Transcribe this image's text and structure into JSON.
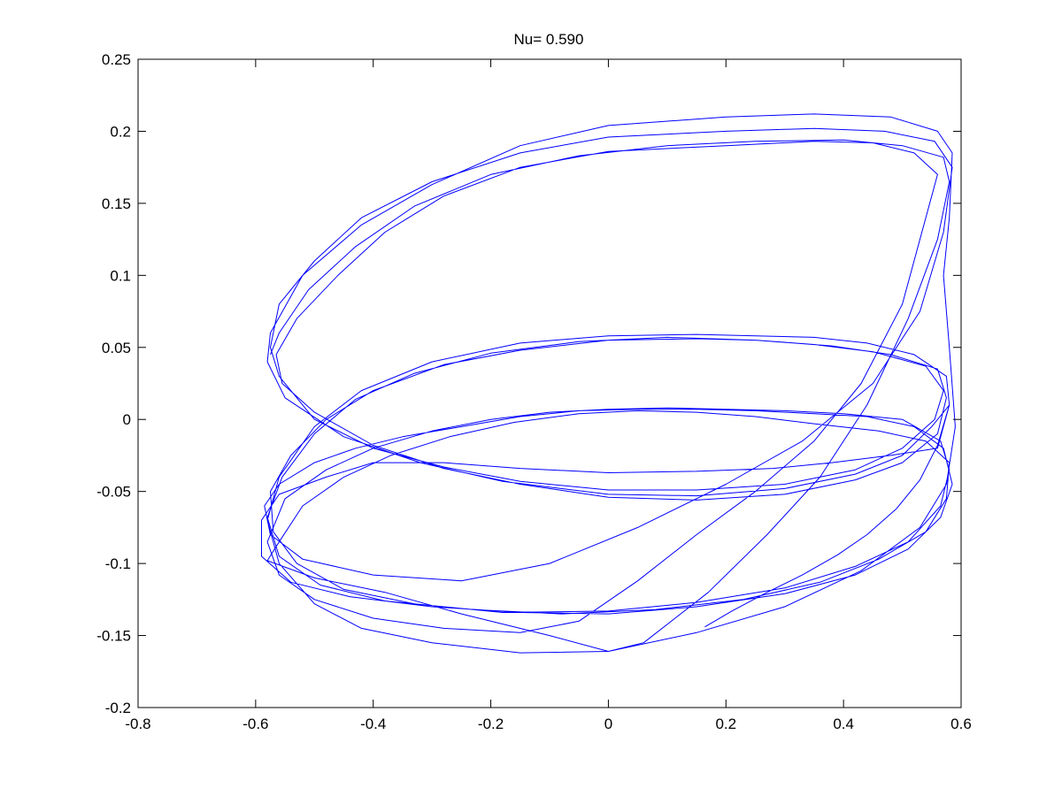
{
  "chart_data": {
    "type": "line",
    "title": "Nu= 0.590",
    "xlabel": "",
    "ylabel": "",
    "xlim": [
      -0.8,
      0.6
    ],
    "ylim": [
      -0.2,
      0.25
    ],
    "xticks": [
      -0.8,
      -0.6,
      -0.4,
      -0.2,
      0,
      0.2,
      0.4,
      0.6
    ],
    "yticks": [
      -0.2,
      -0.15,
      -0.1,
      -0.05,
      0,
      0.05,
      0.1,
      0.15,
      0.2,
      0.25
    ],
    "xtick_labels": [
      "-0.8",
      "-0.6",
      "-0.4",
      "-0.2",
      "0",
      "0.2",
      "0.4",
      "0.6"
    ],
    "ytick_labels": [
      "-0.2",
      "-0.15",
      "-0.1",
      "-0.05",
      "0",
      "0.05",
      "0.1",
      "0.15",
      "0.2",
      "0.25"
    ],
    "grid": false,
    "line_color": "#0000ff",
    "series": [
      {
        "points": [
          [
            0.164,
            -0.144
          ],
          [
            0.21,
            -0.133
          ],
          [
            0.27,
            -0.12
          ],
          [
            0.33,
            -0.108
          ],
          [
            0.39,
            -0.094
          ],
          [
            0.44,
            -0.08
          ],
          [
            0.49,
            -0.062
          ],
          [
            0.53,
            -0.042
          ],
          [
            0.56,
            -0.018
          ],
          [
            0.58,
            0.01
          ],
          [
            0.575,
            0.03
          ],
          [
            0.52,
            0.045
          ],
          [
            0.44,
            0.053
          ],
          [
            0.35,
            0.057
          ],
          [
            0.25,
            0.058
          ],
          [
            0.15,
            0.059
          ],
          [
            0.0,
            0.058
          ],
          [
            -0.15,
            0.053
          ],
          [
            -0.3,
            0.04
          ],
          [
            -0.42,
            0.02
          ],
          [
            -0.5,
            -0.005
          ],
          [
            -0.56,
            -0.04
          ],
          [
            -0.58,
            -0.07
          ],
          [
            -0.56,
            -0.1
          ],
          [
            -0.5,
            -0.128
          ],
          [
            -0.42,
            -0.145
          ],
          [
            -0.3,
            -0.155
          ],
          [
            -0.15,
            -0.162
          ],
          [
            0.0,
            -0.161
          ],
          [
            0.15,
            -0.148
          ],
          [
            0.3,
            -0.13
          ],
          [
            0.43,
            -0.105
          ],
          [
            0.53,
            -0.075
          ],
          [
            0.575,
            -0.045
          ],
          [
            0.59,
            -0.005
          ],
          [
            0.58,
            0.05
          ],
          [
            0.57,
            0.1
          ],
          [
            0.58,
            0.14
          ],
          [
            0.585,
            0.185
          ],
          [
            0.56,
            0.2
          ],
          [
            0.48,
            0.21
          ],
          [
            0.35,
            0.212
          ],
          [
            0.2,
            0.21
          ],
          [
            0.0,
            0.204
          ],
          [
            -0.15,
            0.19
          ],
          [
            -0.3,
            0.163
          ],
          [
            -0.42,
            0.135
          ],
          [
            -0.52,
            0.1
          ],
          [
            -0.575,
            0.06
          ],
          [
            -0.58,
            0.04
          ],
          [
            -0.55,
            0.015
          ],
          [
            -0.45,
            -0.012
          ],
          [
            -0.32,
            -0.03
          ],
          [
            -0.18,
            -0.043
          ],
          [
            0.0,
            -0.052
          ],
          [
            0.15,
            -0.053
          ],
          [
            0.3,
            -0.048
          ],
          [
            0.42,
            -0.038
          ],
          [
            0.5,
            -0.025
          ],
          [
            0.55,
            -0.005
          ],
          [
            0.58,
            0.01
          ],
          [
            0.56,
            -0.02
          ],
          [
            0.48,
            -0.025
          ],
          [
            0.38,
            -0.03
          ],
          [
            0.28,
            -0.034
          ],
          [
            0.15,
            -0.036
          ],
          [
            0.0,
            -0.037
          ],
          [
            -0.15,
            -0.034
          ],
          [
            -0.28,
            -0.03
          ],
          [
            -0.4,
            -0.03
          ],
          [
            -0.48,
            -0.04
          ],
          [
            -0.56,
            -0.052
          ],
          [
            -0.59,
            -0.07
          ],
          [
            -0.59,
            -0.095
          ],
          [
            -0.54,
            -0.113
          ],
          [
            -0.44,
            -0.123
          ],
          [
            -0.3,
            -0.13
          ],
          [
            -0.15,
            -0.134
          ],
          [
            0.0,
            -0.135
          ],
          [
            0.15,
            -0.13
          ],
          [
            0.3,
            -0.121
          ],
          [
            0.42,
            -0.108
          ],
          [
            0.51,
            -0.09
          ],
          [
            0.565,
            -0.068
          ],
          [
            0.585,
            -0.045
          ],
          [
            0.57,
            -0.02
          ],
          [
            0.52,
            -0.005
          ],
          [
            0.44,
            0.002
          ],
          [
            0.35,
            0.004
          ],
          [
            0.25,
            0.006
          ],
          [
            0.15,
            0.007
          ],
          [
            0.05,
            0.007
          ],
          [
            -0.05,
            0.006
          ],
          [
            -0.15,
            0.002
          ],
          [
            -0.25,
            -0.005
          ],
          [
            -0.35,
            -0.012
          ],
          [
            -0.43,
            -0.02
          ],
          [
            -0.5,
            -0.03
          ],
          [
            -0.56,
            -0.045
          ],
          [
            -0.585,
            -0.06
          ],
          [
            -0.575,
            -0.08
          ],
          [
            -0.52,
            -0.097
          ],
          [
            -0.4,
            -0.108
          ],
          [
            -0.25,
            -0.112
          ],
          [
            -0.1,
            -0.1
          ],
          [
            0.05,
            -0.075
          ],
          [
            0.2,
            -0.045
          ],
          [
            0.33,
            -0.015
          ],
          [
            0.45,
            0.025
          ],
          [
            0.53,
            0.075
          ],
          [
            0.57,
            0.13
          ],
          [
            0.585,
            0.175
          ],
          [
            0.555,
            0.193
          ],
          [
            0.47,
            0.2
          ],
          [
            0.35,
            0.202
          ],
          [
            0.2,
            0.2
          ],
          [
            0.0,
            0.196
          ],
          [
            -0.15,
            0.185
          ],
          [
            -0.3,
            0.165
          ],
          [
            -0.42,
            0.14
          ],
          [
            -0.5,
            0.11
          ],
          [
            -0.56,
            0.08
          ],
          [
            -0.575,
            0.05
          ],
          [
            -0.56,
            0.03
          ],
          [
            -0.5,
            0.0
          ],
          [
            -0.4,
            -0.02
          ],
          [
            -0.28,
            -0.033
          ],
          [
            -0.15,
            -0.043
          ],
          [
            0.0,
            -0.049
          ],
          [
            0.15,
            -0.049
          ],
          [
            0.3,
            -0.045
          ],
          [
            0.42,
            -0.035
          ],
          [
            0.5,
            -0.02
          ],
          [
            0.555,
            0.0
          ],
          [
            0.57,
            0.02
          ],
          [
            0.54,
            0.037
          ],
          [
            0.45,
            0.047
          ],
          [
            0.35,
            0.052
          ],
          [
            0.25,
            0.055
          ],
          [
            0.15,
            0.056
          ],
          [
            0.0,
            0.055
          ],
          [
            -0.15,
            0.048
          ],
          [
            -0.28,
            0.038
          ],
          [
            -0.4,
            0.02
          ],
          [
            -0.48,
            0.0
          ],
          [
            -0.54,
            -0.025
          ],
          [
            -0.575,
            -0.05
          ],
          [
            -0.57,
            -0.078
          ],
          [
            -0.53,
            -0.1
          ],
          [
            -0.45,
            -0.118
          ],
          [
            -0.33,
            -0.128
          ],
          [
            -0.18,
            -0.134
          ],
          [
            0.0,
            -0.133
          ],
          [
            0.15,
            -0.127
          ],
          [
            0.3,
            -0.117
          ],
          [
            0.42,
            -0.102
          ],
          [
            0.51,
            -0.085
          ],
          [
            0.565,
            -0.06
          ],
          [
            0.58,
            -0.035
          ],
          [
            0.565,
            -0.015
          ],
          [
            0.5,
            0.0
          ],
          [
            0.4,
            0.004
          ],
          [
            0.3,
            0.006
          ],
          [
            0.2,
            0.007
          ],
          [
            0.1,
            0.008
          ],
          [
            0.0,
            0.007
          ],
          [
            -0.1,
            0.005
          ],
          [
            -0.2,
            0.0
          ],
          [
            -0.3,
            -0.008
          ],
          [
            -0.4,
            -0.02
          ],
          [
            -0.48,
            -0.035
          ],
          [
            -0.55,
            -0.055
          ],
          [
            -0.58,
            -0.085
          ],
          [
            -0.56,
            -0.108
          ],
          [
            -0.5,
            -0.125
          ],
          [
            -0.4,
            -0.138
          ],
          [
            -0.28,
            -0.145
          ],
          [
            -0.15,
            -0.148
          ],
          [
            -0.05,
            -0.14
          ],
          [
            0.05,
            -0.112
          ],
          [
            0.15,
            -0.08
          ],
          [
            0.25,
            -0.05
          ],
          [
            0.35,
            -0.015
          ],
          [
            0.43,
            0.025
          ],
          [
            0.5,
            0.08
          ],
          [
            0.54,
            0.14
          ],
          [
            0.56,
            0.17
          ],
          [
            0.52,
            0.185
          ],
          [
            0.45,
            0.192
          ],
          [
            0.35,
            0.193
          ],
          [
            0.2,
            0.19
          ],
          [
            0.0,
            0.186
          ],
          [
            -0.15,
            0.175
          ],
          [
            -0.28,
            0.155
          ],
          [
            -0.38,
            0.13
          ],
          [
            -0.46,
            0.1
          ],
          [
            -0.53,
            0.07
          ],
          [
            -0.565,
            0.045
          ],
          [
            -0.555,
            0.025
          ],
          [
            -0.5,
            0.005
          ],
          [
            -0.4,
            -0.018
          ],
          [
            -0.28,
            -0.034
          ],
          [
            -0.15,
            -0.045
          ],
          [
            0.0,
            -0.054
          ],
          [
            0.15,
            -0.056
          ],
          [
            0.3,
            -0.052
          ],
          [
            0.42,
            -0.042
          ],
          [
            0.5,
            -0.03
          ],
          [
            0.56,
            -0.01
          ],
          [
            0.575,
            0.015
          ],
          [
            0.56,
            0.035
          ],
          [
            0.48,
            0.045
          ],
          [
            0.38,
            0.051
          ],
          [
            0.25,
            0.055
          ],
          [
            0.1,
            0.057
          ],
          [
            -0.05,
            0.054
          ],
          [
            -0.2,
            0.046
          ],
          [
            -0.33,
            0.032
          ],
          [
            -0.43,
            0.014
          ],
          [
            -0.5,
            -0.01
          ],
          [
            -0.555,
            -0.04
          ],
          [
            -0.58,
            -0.068
          ],
          [
            -0.56,
            -0.095
          ],
          [
            -0.49,
            -0.115
          ],
          [
            -0.38,
            -0.126
          ],
          [
            -0.23,
            -0.132
          ],
          [
            -0.08,
            -0.135
          ],
          [
            0.08,
            -0.132
          ],
          [
            0.23,
            -0.125
          ],
          [
            0.36,
            -0.113
          ],
          [
            0.46,
            -0.097
          ],
          [
            0.54,
            -0.078
          ],
          [
            0.575,
            -0.055
          ],
          [
            0.58,
            -0.03
          ],
          [
            0.54,
            -0.015
          ],
          [
            0.46,
            -0.008
          ],
          [
            0.35,
            -0.003
          ],
          [
            0.25,
            0.002
          ],
          [
            0.15,
            0.005
          ],
          [
            0.05,
            0.006
          ],
          [
            -0.05,
            0.004
          ],
          [
            -0.16,
            -0.002
          ],
          [
            -0.27,
            -0.012
          ],
          [
            -0.37,
            -0.025
          ],
          [
            -0.45,
            -0.04
          ],
          [
            -0.52,
            -0.06
          ],
          [
            -0.56,
            -0.085
          ],
          [
            -0.58,
            -0.098
          ],
          [
            -0.5,
            -0.11
          ],
          [
            -0.38,
            -0.12
          ],
          [
            -0.25,
            -0.135
          ],
          [
            -0.1,
            -0.15
          ],
          [
            0.0,
            -0.161
          ],
          [
            0.06,
            -0.155
          ],
          [
            0.17,
            -0.12
          ],
          [
            0.27,
            -0.08
          ],
          [
            0.36,
            -0.04
          ],
          [
            0.44,
            0.01
          ],
          [
            0.51,
            0.07
          ],
          [
            0.56,
            0.125
          ],
          [
            0.58,
            0.165
          ],
          [
            0.57,
            0.182
          ],
          [
            0.5,
            0.19
          ],
          [
            0.4,
            0.194
          ],
          [
            0.25,
            0.193
          ],
          [
            0.1,
            0.19
          ],
          [
            -0.05,
            0.183
          ],
          [
            -0.2,
            0.17
          ],
          [
            -0.33,
            0.148
          ],
          [
            -0.43,
            0.12
          ],
          [
            -0.51,
            0.09
          ],
          [
            -0.56,
            0.06
          ],
          [
            -0.575,
            0.045
          ]
        ]
      }
    ]
  }
}
